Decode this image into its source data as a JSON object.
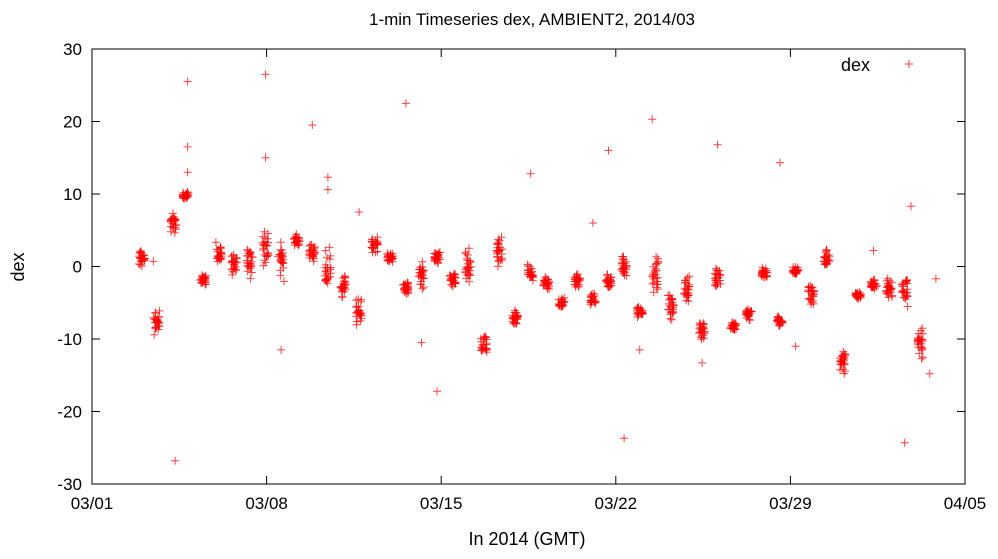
{
  "chart_data": {
    "type": "scatter",
    "title": "1-min Timeseries dex, AMBIENT2, 2014/03",
    "xlabel": "In 2014 (GMT)",
    "ylabel": "dex",
    "xlim": [
      "2014-03-01",
      "2014-04-05"
    ],
    "ylim": [
      -30,
      30
    ],
    "xticks": [
      {
        "value": "2014-03-01",
        "label": "03/01"
      },
      {
        "value": "2014-03-08",
        "label": "03/08"
      },
      {
        "value": "2014-03-15",
        "label": "03/15"
      },
      {
        "value": "2014-03-22",
        "label": "03/22"
      },
      {
        "value": "2014-03-29",
        "label": "03/29"
      },
      {
        "value": "2014-04-05",
        "label": "04/05"
      }
    ],
    "yticks": [
      30,
      20,
      10,
      0,
      -10,
      -20,
      -30
    ],
    "grid": false,
    "legend": {
      "position": "top-right",
      "entries": [
        {
          "name": "dex",
          "marker": "+",
          "color": "#ff0000"
        }
      ]
    },
    "series": [
      {
        "name": "dex",
        "marker": "+",
        "color": "#ff0000",
        "clusters": [
          {
            "x": "2014-03-03T00:00",
            "y": 1.0,
            "spread": 2.2
          },
          {
            "x": "2014-03-03T14:00",
            "y": -7.5,
            "spread": 2.5
          },
          {
            "x": "2014-03-04T06:00",
            "y": 6.0,
            "spread": 2.0
          },
          {
            "x": "2014-03-04T18:00",
            "y": 9.8,
            "spread": 0.7
          },
          {
            "x": "2014-03-05T11:00",
            "y": -1.8,
            "spread": 1.0
          },
          {
            "x": "2014-03-06T02:00",
            "y": 1.5,
            "spread": 2.0
          },
          {
            "x": "2014-03-06T17:00",
            "y": 0.3,
            "spread": 2.0
          },
          {
            "x": "2014-03-07T08:00",
            "y": 1.0,
            "spread": 3.0
          },
          {
            "x": "2014-03-07T23:00",
            "y": 2.5,
            "spread": 3.0
          },
          {
            "x": "2014-03-08T14:00",
            "y": 1.0,
            "spread": 4.0
          },
          {
            "x": "2014-03-09T05:00",
            "y": 3.6,
            "spread": 1.0
          },
          {
            "x": "2014-03-09T20:00",
            "y": 2.0,
            "spread": 1.5
          },
          {
            "x": "2014-03-10T11:00",
            "y": -0.5,
            "spread": 4.0
          },
          {
            "x": "2014-03-11T02:00",
            "y": -3.0,
            "spread": 2.5
          },
          {
            "x": "2014-03-11T17:00",
            "y": -6.0,
            "spread": 3.0
          },
          {
            "x": "2014-03-12T08:00",
            "y": 3.0,
            "spread": 1.5
          },
          {
            "x": "2014-03-12T23:00",
            "y": 1.2,
            "spread": 1.2
          },
          {
            "x": "2014-03-13T14:00",
            "y": -3.0,
            "spread": 1.2
          },
          {
            "x": "2014-03-14T05:00",
            "y": -1.0,
            "spread": 3.0
          },
          {
            "x": "2014-03-14T20:00",
            "y": 1.3,
            "spread": 1.5
          },
          {
            "x": "2014-03-15T11:00",
            "y": -1.8,
            "spread": 1.2
          },
          {
            "x": "2014-03-16T02:00",
            "y": 0.0,
            "spread": 3.5
          },
          {
            "x": "2014-03-16T17:00",
            "y": -11.0,
            "spread": 2.5
          },
          {
            "x": "2014-03-17T08:00",
            "y": 1.5,
            "spread": 3.5
          },
          {
            "x": "2014-03-17T23:00",
            "y": -7.2,
            "spread": 1.5
          },
          {
            "x": "2014-03-18T14:00",
            "y": -1.0,
            "spread": 1.5
          },
          {
            "x": "2014-03-19T05:00",
            "y": -2.5,
            "spread": 1.5
          },
          {
            "x": "2014-03-19T20:00",
            "y": -5.0,
            "spread": 1.0
          },
          {
            "x": "2014-03-20T11:00",
            "y": -2.0,
            "spread": 1.5
          },
          {
            "x": "2014-03-21T02:00",
            "y": -4.5,
            "spread": 1.2
          },
          {
            "x": "2014-03-21T17:00",
            "y": -2.0,
            "spread": 1.5
          },
          {
            "x": "2014-03-22T08:00",
            "y": 0.0,
            "spread": 2.0
          },
          {
            "x": "2014-03-22T23:00",
            "y": -6.3,
            "spread": 1.2
          },
          {
            "x": "2014-03-23T14:00",
            "y": -1.0,
            "spread": 3.5
          },
          {
            "x": "2014-03-24T05:00",
            "y": -5.5,
            "spread": 3.0
          },
          {
            "x": "2014-03-24T20:00",
            "y": -3.0,
            "spread": 3.0
          },
          {
            "x": "2014-03-25T11:00",
            "y": -8.5,
            "spread": 2.2
          },
          {
            "x": "2014-03-26T02:00",
            "y": -1.5,
            "spread": 1.5
          },
          {
            "x": "2014-03-26T17:00",
            "y": -8.3,
            "spread": 0.8
          },
          {
            "x": "2014-03-27T08:00",
            "y": -6.5,
            "spread": 1.3
          },
          {
            "x": "2014-03-27T23:00",
            "y": -1.0,
            "spread": 1.0
          },
          {
            "x": "2014-03-28T14:00",
            "y": -7.5,
            "spread": 1.0
          },
          {
            "x": "2014-03-29T05:00",
            "y": -0.5,
            "spread": 1.0
          },
          {
            "x": "2014-03-29T20:00",
            "y": -4.0,
            "spread": 2.5
          },
          {
            "x": "2014-03-30T11:00",
            "y": 1.0,
            "spread": 2.2
          },
          {
            "x": "2014-03-31T02:00",
            "y": -13.0,
            "spread": 2.5
          },
          {
            "x": "2014-03-31T17:00",
            "y": -4.0,
            "spread": 0.8
          },
          {
            "x": "2014-04-01T08:00",
            "y": -2.5,
            "spread": 1.0
          },
          {
            "x": "2014-04-01T23:00",
            "y": -3.0,
            "spread": 2.5
          },
          {
            "x": "2014-04-02T14:00",
            "y": -3.0,
            "spread": 3.0
          },
          {
            "x": "2014-04-03T05:00",
            "y": -10.5,
            "spread": 2.5
          }
        ],
        "outliers": [
          {
            "x": "2014-03-03T11:00",
            "y": 0.7
          },
          {
            "x": "2014-03-04T08:00",
            "y": -26.8
          },
          {
            "x": "2014-03-04T20:00",
            "y": 25.5
          },
          {
            "x": "2014-03-04T20:00",
            "y": 16.5
          },
          {
            "x": "2014-03-04T20:00",
            "y": 13.0
          },
          {
            "x": "2014-03-07T23:00",
            "y": 26.5
          },
          {
            "x": "2014-03-07T23:00",
            "y": 15.0
          },
          {
            "x": "2014-03-08T14:00",
            "y": -11.5
          },
          {
            "x": "2014-03-09T20:00",
            "y": 19.5
          },
          {
            "x": "2014-03-10T11:00",
            "y": 12.3
          },
          {
            "x": "2014-03-10T11:00",
            "y": 10.6
          },
          {
            "x": "2014-03-11T17:00",
            "y": 7.5
          },
          {
            "x": "2014-03-13T14:00",
            "y": 22.5
          },
          {
            "x": "2014-03-14T05:00",
            "y": -10.5
          },
          {
            "x": "2014-03-14T20:00",
            "y": -17.2
          },
          {
            "x": "2014-03-18T14:00",
            "y": 12.8
          },
          {
            "x": "2014-03-21T02:00",
            "y": 6.0
          },
          {
            "x": "2014-03-21T17:00",
            "y": 16.0
          },
          {
            "x": "2014-03-22T08:00",
            "y": -23.7
          },
          {
            "x": "2014-03-22T23:00",
            "y": -11.5
          },
          {
            "x": "2014-03-23T11:00",
            "y": 20.3
          },
          {
            "x": "2014-03-25T11:00",
            "y": -13.3
          },
          {
            "x": "2014-03-26T02:00",
            "y": 16.8
          },
          {
            "x": "2014-03-28T14:00",
            "y": 14.3
          },
          {
            "x": "2014-03-29T05:00",
            "y": -11.0
          },
          {
            "x": "2014-04-01T08:00",
            "y": 2.2
          },
          {
            "x": "2014-04-02T14:00",
            "y": -24.3
          },
          {
            "x": "2014-04-02T20:00",
            "y": 8.3
          },
          {
            "x": "2014-04-03T14:00",
            "y": -14.8
          },
          {
            "x": "2014-04-03T20:00",
            "y": -1.7
          }
        ]
      }
    ]
  }
}
